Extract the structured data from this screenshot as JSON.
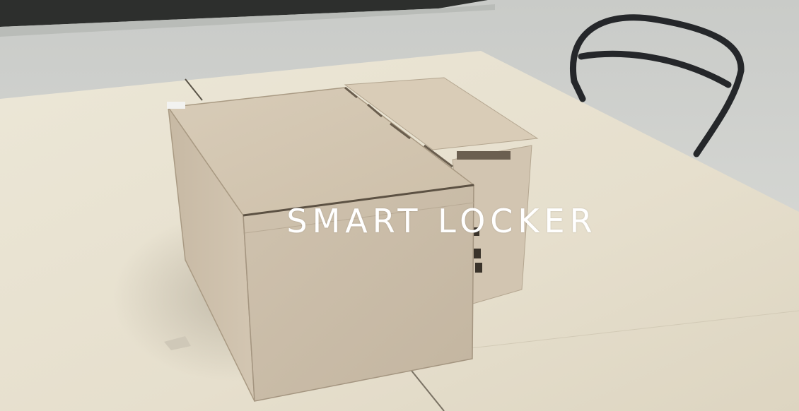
{
  "overlay": {
    "title": "SMART LOCKER"
  },
  "colors": {
    "wall": "#d7d8d4",
    "table": "#ece6d6",
    "wood": "#cbbda9",
    "chair": "#2a2b2e",
    "title_text": "#ffffff"
  }
}
